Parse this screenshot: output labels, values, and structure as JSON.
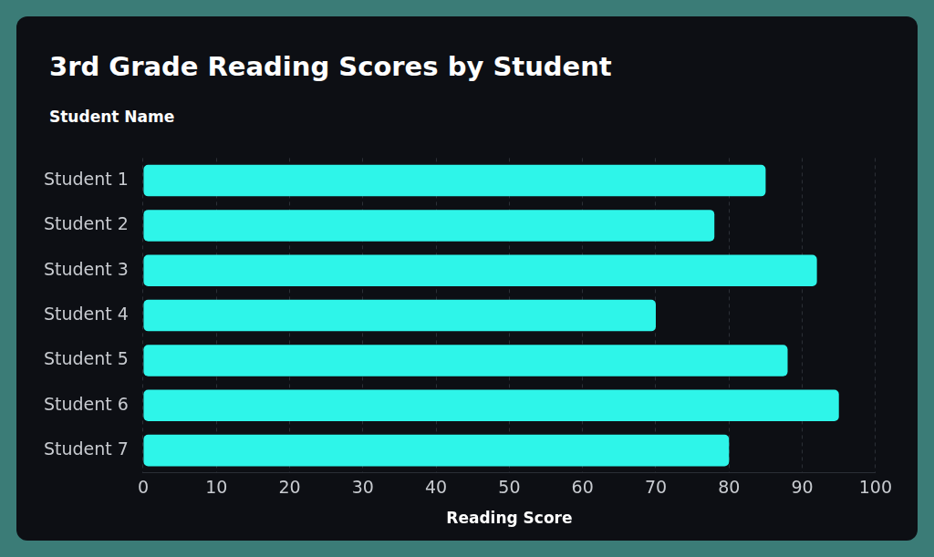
{
  "chart_data": {
    "type": "bar",
    "title": "3rd Grade Reading Scores by Student",
    "ylabel": "Student Name",
    "xlabel": "Reading Score",
    "categories": [
      "Student 1",
      "Student 2",
      "Student 3",
      "Student 4",
      "Student 5",
      "Student 6",
      "Student 7"
    ],
    "values": [
      85,
      78,
      92,
      70,
      88,
      95,
      80
    ],
    "color": "#2ef5e9",
    "orientation": "horizontal",
    "xlim": [
      0,
      100
    ],
    "xticks": [
      0,
      10,
      20,
      30,
      40,
      50,
      60,
      70,
      80,
      90,
      100
    ],
    "grid": true
  }
}
